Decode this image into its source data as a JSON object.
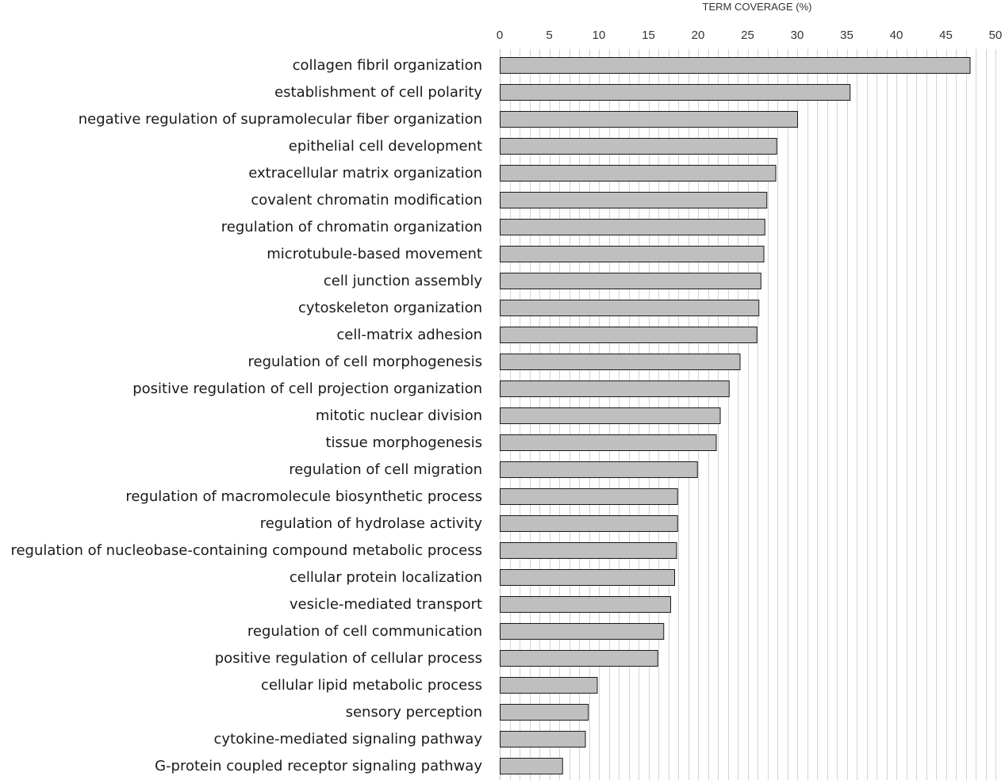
{
  "chart_data": {
    "type": "bar",
    "orientation": "horizontal",
    "title": "",
    "xlabel": "TERM COVERAGE (%)",
    "ylabel": "",
    "xlim": [
      0,
      50
    ],
    "xticks": [
      0,
      5,
      10,
      15,
      20,
      25,
      30,
      35,
      40,
      45,
      50
    ],
    "minor_grid_step": 1,
    "grid": true,
    "x_axis_position": "top",
    "bar_color": "#bfbfbf",
    "bar_edge_color": "#1a1a1a",
    "categories": [
      "collagen fibril organization",
      "establishment of cell polarity",
      "negative regulation of supramolecular fiber organization",
      "epithelial cell development",
      "extracellular matrix organization",
      "covalent chromatin modification",
      "regulation of chromatin organization",
      "microtubule-based movement",
      "cell junction assembly",
      "cytoskeleton organization",
      "cell-matrix adhesion",
      "regulation of cell morphogenesis",
      "positive regulation of cell projection organization",
      "mitotic nuclear division",
      "tissue morphogenesis",
      "regulation of cell migration",
      "regulation of macromolecule biosynthetic process",
      "regulation of hydrolase activity",
      "regulation of nucleobase-containing compound metabolic process",
      "cellular protein localization",
      "vesicle-mediated transport",
      "regulation of cell communication",
      "positive regulation of cellular process",
      "cellular lipid metabolic process",
      "sensory perception",
      "cytokine-mediated signaling pathway",
      "G-protein coupled receptor signaling pathway"
    ],
    "values": [
      47.4,
      35.3,
      30.0,
      27.9,
      27.8,
      26.9,
      26.7,
      26.6,
      26.3,
      26.1,
      25.9,
      24.2,
      23.1,
      22.2,
      21.8,
      19.9,
      17.9,
      17.9,
      17.8,
      17.6,
      17.2,
      16.5,
      15.9,
      9.8,
      8.9,
      8.6,
      6.3
    ]
  }
}
